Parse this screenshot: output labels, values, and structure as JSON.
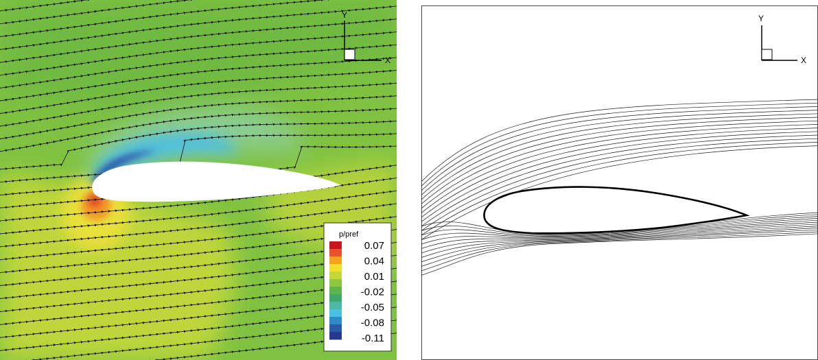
{
  "left_panel": {
    "axes": {
      "y_label": "Y",
      "x_label": "X"
    },
    "legend": {
      "title": "p/pref",
      "labels": [
        "0.07",
        "0.04",
        "0.01",
        "-0.02",
        "-0.05",
        "-0.08",
        "-0.11"
      ],
      "colors": [
        "#c8161d",
        "#e8512a",
        "#f5a21c",
        "#f2de2b",
        "#c3d739",
        "#8dc63f",
        "#5cb44b",
        "#3fa96a",
        "#4cb9a7",
        "#49c0e6",
        "#2f8ccb",
        "#2a5ba8",
        "#253a8e"
      ]
    }
  },
  "right_panel": {
    "axes": {
      "y_label": "Y",
      "x_label": "X"
    }
  },
  "colors": {
    "field_base": "#7fc241",
    "low_pressure": "#3fb6e6",
    "high_pressure": "#e65a2a",
    "elevated_pressure": "#e8e03a",
    "streamline": "#1a1a1a"
  }
}
